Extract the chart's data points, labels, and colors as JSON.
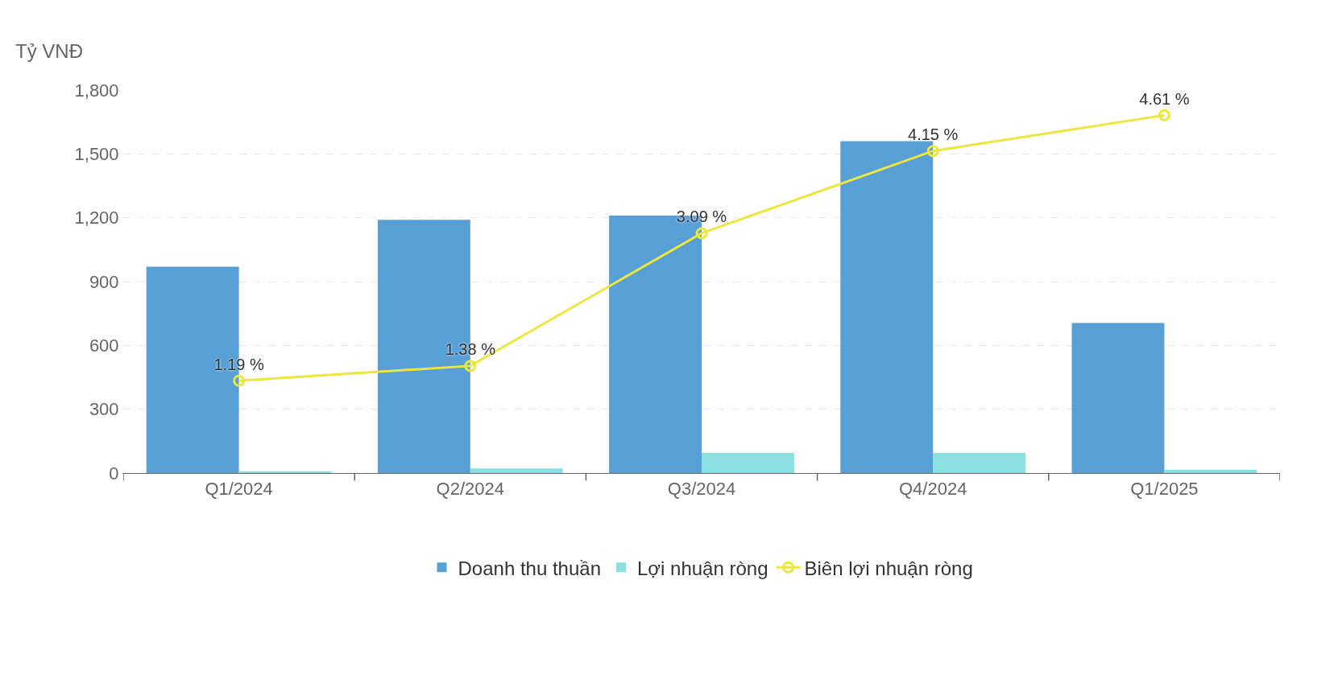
{
  "chart_data": {
    "type": "bar",
    "ylabel": "Tỷ VNĐ",
    "categories": [
      "Q1/2024",
      "Q2/2024",
      "Q3/2024",
      "Q4/2024",
      "Q1/2025"
    ],
    "series": [
      {
        "name": "Doanh thu thuần",
        "color": "#589fd6",
        "values": [
          970,
          1190,
          1210,
          1560,
          705
        ]
      },
      {
        "name": "Lợi nhuận ròng",
        "color": "#8adfe0",
        "values": [
          5,
          22,
          95,
          95,
          15
        ]
      },
      {
        "name": "Biên lợi nhuận ròng",
        "type": "line",
        "axis": "y2",
        "color": "#ede63f",
        "marker": "circle",
        "values": [
          1.19,
          1.38,
          3.09,
          4.15,
          4.61
        ],
        "value_labels": [
          "1.19 %",
          "1.38 %",
          "3.09 %",
          "4.15 %",
          "4.61 %"
        ]
      }
    ],
    "ylim": [
      0,
      1800
    ],
    "yticks": [
      0,
      {
        "value": 300,
        "label": "300"
      },
      {
        "value": 600,
        "label": "600"
      },
      {
        "value": 900,
        "label": "900"
      },
      {
        "value": 1200,
        "label": "1,200"
      },
      {
        "value": 1500,
        "label": "1,500"
      },
      {
        "value": 1800,
        "label": "1,800"
      }
    ],
    "grid": "y",
    "legend": "bottom"
  }
}
